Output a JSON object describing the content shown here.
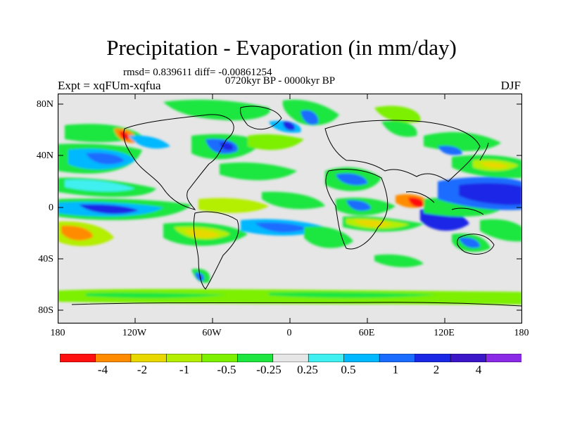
{
  "title": "Precipitation - Evaporation (in mm/day)",
  "stats": "rmsd= 0.839611 diff= -0.00861254",
  "period": "0720kyr BP - 0000kyr BP",
  "experiment": "Expt = xqFUm-xqfua",
  "season": "DJF",
  "lat_labels": [
    "80N",
    "40N",
    "0",
    "40S",
    "80S"
  ],
  "lon_labels": [
    "180",
    "120W",
    "60W",
    "0",
    "60E",
    "120E",
    "180"
  ],
  "colorbar": {
    "colors": [
      "#ff1010",
      "#ff8c00",
      "#e8d800",
      "#b4ee00",
      "#7cf000",
      "#1ee640",
      "#e6e6e6",
      "#40f0f0",
      "#00b8ff",
      "#1a6cff",
      "#1a28e6",
      "#3a16c8",
      "#8a2ae6"
    ],
    "labels": [
      "-4",
      "-2",
      "-1",
      "-0.5",
      "-0.25",
      "0.25",
      "0.5",
      "1",
      "2",
      "4"
    ]
  },
  "colors": {
    "neutral": "#e6e6e6",
    "coast": "#000000"
  }
}
